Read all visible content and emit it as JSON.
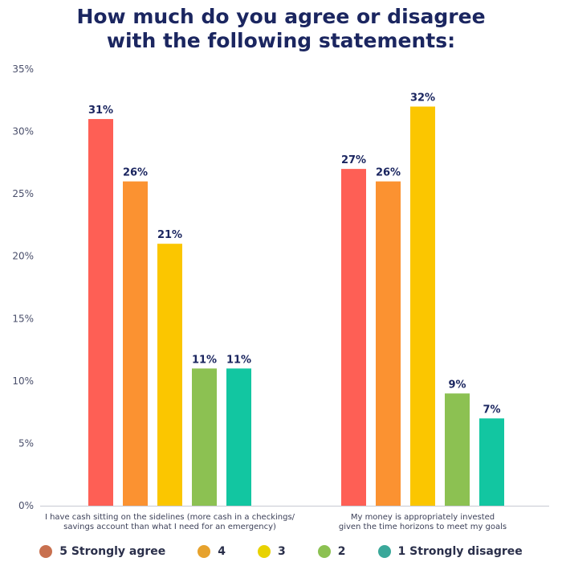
{
  "chart_data": {
    "type": "bar",
    "title_lines": [
      "How much do you agree or disagree",
      "with the following statements:"
    ],
    "categories": [
      [
        "I have cash sitting on the sidelines (more cash in a checkings/",
        "savings account than what I need for an emergency)"
      ],
      [
        "My money is appropriately invested",
        "given the time horizons to meet my goals"
      ]
    ],
    "series": [
      {
        "name": "5 Strongly agree",
        "color": "#fe5f55",
        "values": [
          31,
          27
        ],
        "labels": [
          "31%",
          "27%"
        ]
      },
      {
        "name": "4",
        "color": "#fb9231",
        "values": [
          26,
          26
        ],
        "labels": [
          "26%",
          "26%"
        ]
      },
      {
        "name": "3",
        "color": "#fbc600",
        "values": [
          21,
          32
        ],
        "labels": [
          "21%",
          "32%"
        ]
      },
      {
        "name": "2",
        "color": "#8cc152",
        "values": [
          11,
          9
        ],
        "labels": [
          "11%",
          "9%"
        ]
      },
      {
        "name": "1 Strongly disagree",
        "color": "#12c6a1",
        "values": [
          11,
          7
        ],
        "labels": [
          "11%",
          "7%"
        ]
      }
    ],
    "yticks": [
      "0%",
      "5%",
      "10%",
      "15%",
      "20%",
      "25%",
      "30%",
      "35%"
    ],
    "ylim": [
      0,
      35
    ],
    "grid": false,
    "legend_position": "bottom",
    "legend_colors": [
      "#c8704f",
      "#e6a22d",
      "#e8d200",
      "#8cc152",
      "#3aa89a"
    ]
  }
}
